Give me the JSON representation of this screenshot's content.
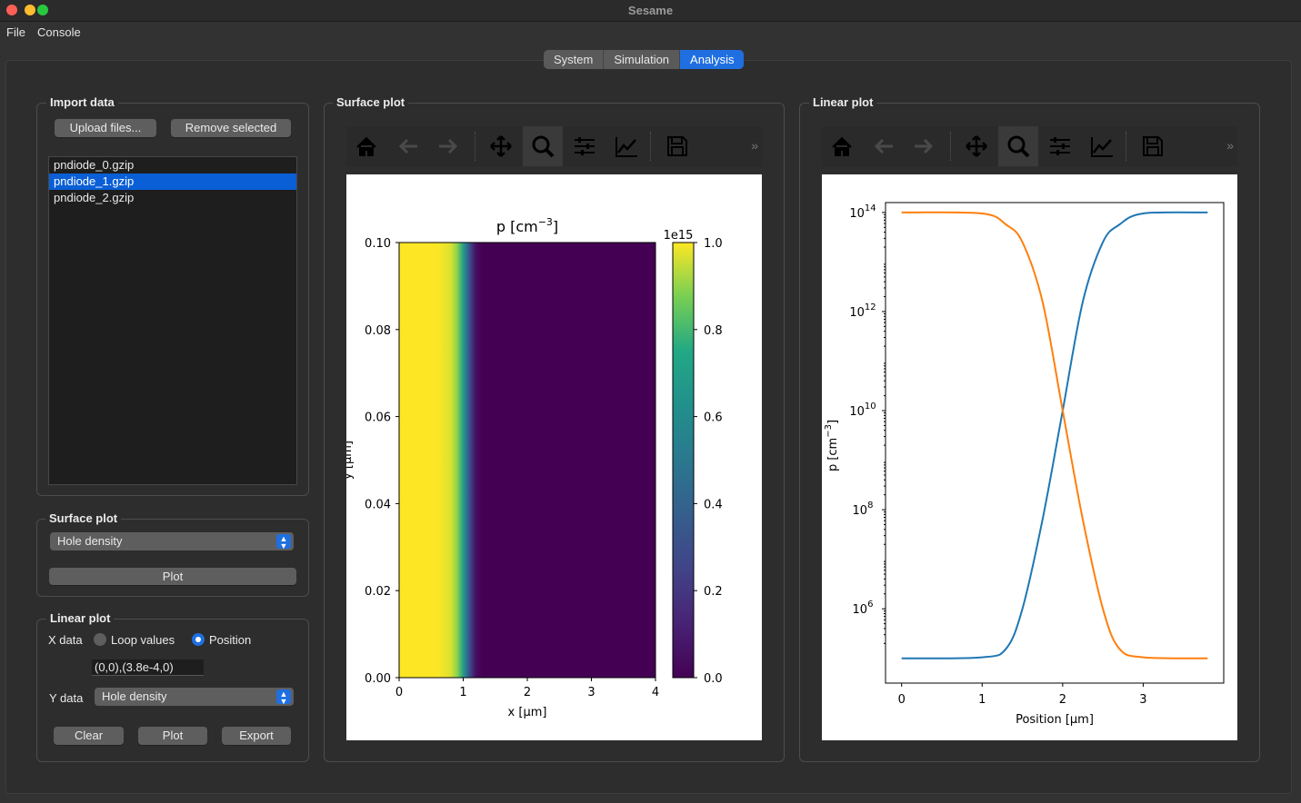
{
  "window": {
    "title": "Sesame"
  },
  "menu": [
    "File",
    "Console"
  ],
  "tabs": [
    {
      "label": "System"
    },
    {
      "label": "Simulation"
    },
    {
      "label": "Analysis",
      "active": true
    }
  ],
  "import": {
    "title": "Import data",
    "upload": "Upload files...",
    "remove": "Remove selected",
    "files": [
      "pndiode_0.gzip",
      "pndiode_1.gzip",
      "pndiode_2.gzip"
    ],
    "selected_index": 1
  },
  "surface_ctrl": {
    "title": "Surface plot",
    "select": "Hole density",
    "plot": "Plot"
  },
  "linear_ctrl": {
    "title": "Linear plot",
    "xdata_label": "X data",
    "opt_loop": "Loop values",
    "opt_position": "Position",
    "xdata_selected": "Position",
    "position_value": "(0,0),(3.8e-4,0)",
    "ydata_label": "Y data",
    "ydata_select": "Hole density",
    "clear": "Clear",
    "plot": "Plot",
    "export": "Export"
  },
  "surface_panel": {
    "title": "Surface plot"
  },
  "linear_panel": {
    "title": "Linear plot"
  },
  "toolbar_icons": [
    "home-icon",
    "back-arrow-icon",
    "forward-arrow-icon",
    "pan-icon",
    "zoom-icon",
    "configure-subplots-icon",
    "edit-axis-icon",
    "save-icon",
    "more-icon"
  ],
  "colors": {
    "accent": "#1f6fe0",
    "series_blue": "#1f77b4",
    "series_orange": "#ff7f0e"
  },
  "chart_data": [
    {
      "type": "heatmap",
      "title": "p [cm$^{-3}$]",
      "title_parts": {
        "base": "p [cm",
        "sup": "−3",
        "end": "]"
      },
      "xlabel": "x [μm]",
      "ylabel": "y [μm]",
      "xlim": [
        0,
        4
      ],
      "ylim": [
        0,
        0.1
      ],
      "xticks": [
        "0",
        "1",
        "2",
        "3",
        "4"
      ],
      "yticks": [
        "0.00",
        "0.02",
        "0.04",
        "0.06",
        "0.08",
        "0.10"
      ],
      "colorbar": {
        "colormap": "viridis",
        "min": 0,
        "max": 1.0,
        "multiplier": "1e15",
        "ticks": [
          "0.0",
          "0.2",
          "0.4",
          "0.6",
          "0.8",
          "1.0"
        ]
      },
      "profile": {
        "x": [
          0,
          0.6,
          0.8,
          0.9,
          1.0,
          1.05,
          1.1,
          1.2,
          1.3,
          4.0
        ],
        "value": [
          1.0,
          1.0,
          0.97,
          0.9,
          0.7,
          0.5,
          0.3,
          0.05,
          0.0,
          0.0
        ]
      }
    },
    {
      "type": "line",
      "xlabel": "Position [μm]",
      "ylabel": "p [cm$^{-3}$]",
      "ylabel_parts": {
        "base": "p [cm",
        "sup": "−3",
        "end": "]"
      },
      "xlim": [
        -0.2,
        4.0
      ],
      "yscale": "log",
      "ylim_log10": [
        4.5,
        14.2
      ],
      "xticks": [
        "0",
        "1",
        "2",
        "3"
      ],
      "yticks": [
        {
          "base": "10",
          "exp": "6"
        },
        {
          "base": "10",
          "exp": "8"
        },
        {
          "base": "10",
          "exp": "10"
        },
        {
          "base": "10",
          "exp": "12"
        },
        {
          "base": "10",
          "exp": "14"
        }
      ],
      "series": [
        {
          "color": "#1f77b4",
          "x": [
            0,
            1.0,
            1.3,
            1.5,
            1.75,
            2.0,
            2.25,
            2.5,
            2.7,
            3.0,
            3.8
          ],
          "log10y": [
            5.0,
            5.02,
            5.2,
            6.0,
            7.8,
            10.0,
            12.2,
            13.4,
            13.75,
            13.98,
            14.0
          ]
        },
        {
          "color": "#ff7f0e",
          "x": [
            0,
            1.0,
            1.3,
            1.5,
            1.75,
            2.0,
            2.25,
            2.5,
            2.7,
            3.0,
            3.8
          ],
          "log10y": [
            14.0,
            13.98,
            13.75,
            13.4,
            12.2,
            10.0,
            7.8,
            6.0,
            5.2,
            5.02,
            5.0
          ]
        }
      ]
    }
  ]
}
